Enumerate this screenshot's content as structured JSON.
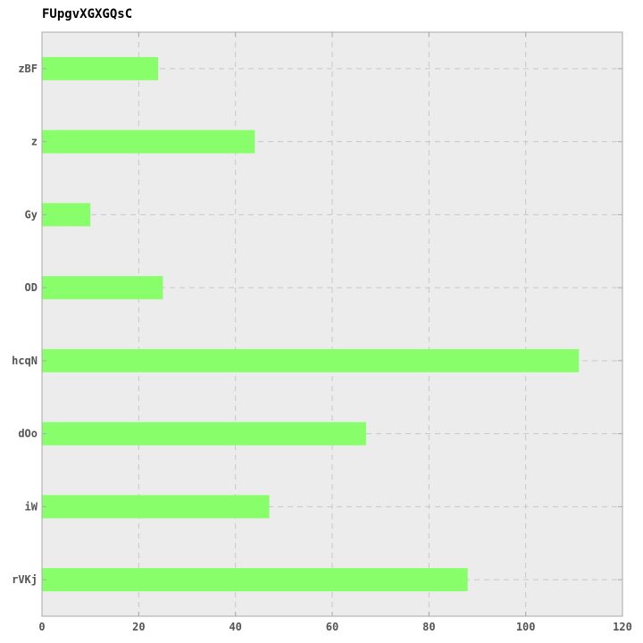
{
  "chart_data": {
    "type": "bar",
    "orientation": "horizontal",
    "title": "FUpgvXGXGQsC",
    "xlabel": "",
    "ylabel": "",
    "categories": [
      "rVKj",
      "iW",
      "dOo",
      "hcqN",
      "OD",
      "Gy",
      "z",
      "zBF"
    ],
    "values": [
      88,
      47,
      67,
      111,
      25,
      10,
      44,
      24
    ],
    "xlim": [
      0,
      120
    ],
    "xticks": [
      0,
      20,
      40,
      60,
      80,
      100,
      120
    ],
    "grid": true,
    "legend": "none",
    "colors": {
      "bar": "#88ff6a",
      "plot_background": "#ececec",
      "grid": "#c8c8c8",
      "axis": "#aaaaaa",
      "tick_text": "#555555"
    }
  }
}
